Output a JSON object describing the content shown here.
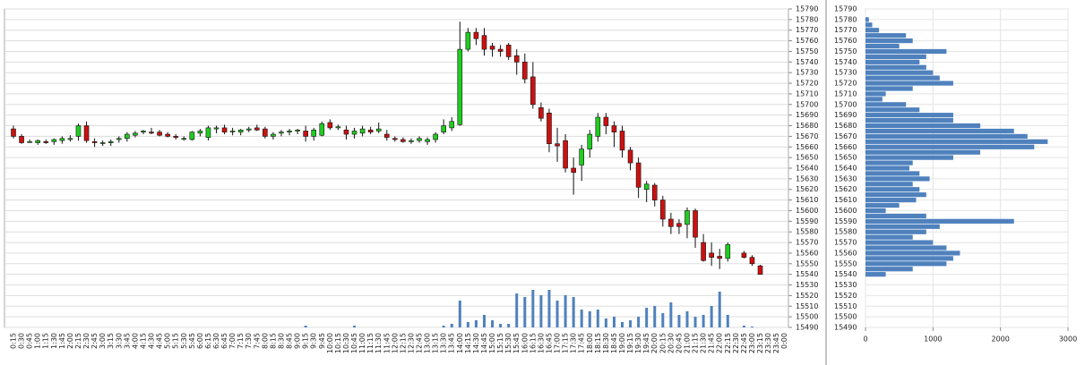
{
  "chart_data": [
    {
      "type": "candlestick",
      "categories": [
        "0:15",
        "0:30",
        "0:45",
        "1:00",
        "1:15",
        "1:30",
        "1:45",
        "2:00",
        "2:15",
        "2:30",
        "2:45",
        "3:00",
        "3:15",
        "3:30",
        "3:45",
        "4:00",
        "4:15",
        "4:30",
        "4:45",
        "5:00",
        "5:15",
        "5:30",
        "5:45",
        "6:00",
        "6:15",
        "6:30",
        "6:45",
        "7:00",
        "7:15",
        "7:30",
        "7:45",
        "8:00",
        "8:15",
        "8:30",
        "8:45",
        "9:00",
        "9:15",
        "9:30",
        "9:45",
        "10:00",
        "10:15",
        "10:30",
        "10:45",
        "11:00",
        "11:15",
        "11:30",
        "11:45",
        "12:00",
        "12:15",
        "12:30",
        "12:45",
        "13:00",
        "13:15",
        "13:30",
        "13:45",
        "14:00",
        "14:15",
        "14:30",
        "14:45",
        "15:00",
        "15:15",
        "15:30",
        "15:45",
        "16:00",
        "16:15",
        "16:30",
        "16:45",
        "17:00",
        "17:15",
        "17:30",
        "17:45",
        "18:00",
        "18:15",
        "18:30",
        "18:45",
        "19:00",
        "19:15",
        "19:30",
        "19:45",
        "20:00",
        "20:15",
        "20:30",
        "20:45",
        "21:00",
        "21:15",
        "21:30",
        "21:45",
        "22:00",
        "22:15",
        "22:30",
        "22:45",
        "23:00",
        "23:15",
        "23:30",
        "23:45",
        "0:00"
      ],
      "open": [
        15677,
        15670,
        15665,
        15664,
        15665,
        15665,
        15666,
        15667,
        15670,
        15680,
        15665,
        15664,
        15664,
        15667,
        15668,
        15671,
        15674,
        15674,
        15674,
        15672,
        15670,
        15668,
        15667,
        15673,
        15669,
        15677,
        15678,
        15675,
        15674,
        15676,
        15678,
        15677,
        15670,
        15673,
        15674,
        15675,
        15675,
        15670,
        15671,
        15683,
        15678,
        15676,
        15672,
        15673,
        15676,
        15675,
        15672,
        15668,
        15667,
        15665,
        15666,
        15665,
        15667,
        15674,
        15678,
        15681,
        15752,
        15768,
        15765,
        15755,
        15752,
        15756,
        15746,
        15740,
        15726,
        15697,
        15692,
        15663,
        15666,
        15640,
        15643,
        15658,
        15670,
        15688,
        15680,
        15675,
        15657,
        15645,
        15620,
        15624,
        15610,
        15592,
        15588,
        15587,
        15600,
        15570,
        15560,
        15557,
        15555,
        null,
        15560,
        15556,
        15548,
        null,
        null,
        null
      ],
      "high": [
        15680,
        15672,
        15667,
        15667,
        15667,
        15668,
        15670,
        15671,
        15682,
        15684,
        15668,
        15666,
        15667,
        15670,
        15674,
        15675,
        15676,
        15678,
        15676,
        15674,
        15672,
        15670,
        15675,
        15677,
        15680,
        15680,
        15681,
        15678,
        15677,
        15679,
        15681,
        15679,
        15674,
        15676,
        15677,
        15677,
        15680,
        15678,
        15684,
        15686,
        15681,
        15680,
        15678,
        15680,
        15679,
        15683,
        15676,
        15670,
        15669,
        15668,
        15670,
        15669,
        15674,
        15686,
        15688,
        15778,
        15772,
        15772,
        15772,
        15758,
        15756,
        15758,
        15752,
        15748,
        15740,
        15702,
        15696,
        15678,
        15672,
        15650,
        15662,
        15676,
        15692,
        15692,
        15684,
        15680,
        15660,
        15650,
        15628,
        15626,
        15614,
        15598,
        15592,
        15603,
        15602,
        15578,
        15570,
        15564,
        15570,
        null,
        15562,
        15558,
        15549,
        null,
        null,
        null
      ],
      "low": [
        15668,
        15663,
        15664,
        15662,
        15663,
        15662,
        15663,
        15665,
        15666,
        15664,
        15660,
        15661,
        15661,
        15664,
        15665,
        15669,
        15672,
        15672,
        15670,
        15669,
        15667,
        15666,
        15666,
        15670,
        15666,
        15673,
        15672,
        15671,
        15671,
        15674,
        15675,
        15668,
        15667,
        15670,
        15671,
        15672,
        15665,
        15666,
        15670,
        15676,
        15676,
        15667,
        15668,
        15670,
        15672,
        15673,
        15666,
        15665,
        15664,
        15663,
        15664,
        15662,
        15664,
        15672,
        15675,
        15680,
        15750,
        15756,
        15746,
        15745,
        15745,
        15742,
        15728,
        15720,
        15696,
        15684,
        15655,
        15646,
        15636,
        15615,
        15628,
        15650,
        15665,
        15672,
        15660,
        15650,
        15638,
        15612,
        15608,
        15604,
        15585,
        15578,
        15578,
        15574,
        15565,
        15552,
        15548,
        15545,
        15552,
        null,
        15555,
        15548,
        15540,
        null,
        null,
        null
      ],
      "close": [
        15670,
        15664,
        15665,
        15666,
        15664,
        15667,
        15668,
        15668,
        15680,
        15666,
        15664,
        15664,
        15665,
        15668,
        15672,
        15673,
        15675,
        15673,
        15671,
        15670,
        15669,
        15668,
        15674,
        15675,
        15678,
        15678,
        15674,
        15675,
        15676,
        15677,
        15676,
        15670,
        15672,
        15674,
        15675,
        15676,
        15670,
        15676,
        15682,
        15678,
        15679,
        15672,
        15675,
        15677,
        15674,
        15677,
        15669,
        15667,
        15665,
        15666,
        15668,
        15667,
        15672,
        15680,
        15684,
        15752,
        15768,
        15762,
        15752,
        15752,
        15750,
        15745,
        15740,
        15724,
        15700,
        15687,
        15663,
        15661,
        15640,
        15636,
        15658,
        15672,
        15688,
        15680,
        15674,
        15657,
        15645,
        15622,
        15625,
        15610,
        15592,
        15585,
        15585,
        15600,
        15575,
        15553,
        15556,
        15555,
        15568,
        null,
        15556,
        15550,
        15540,
        null,
        null,
        null
      ],
      "volume": [
        0,
        0,
        0,
        0,
        0,
        0,
        0,
        0,
        0,
        0,
        0,
        0,
        0,
        0,
        0,
        0,
        0,
        0,
        0,
        0,
        0,
        0,
        0,
        0,
        0,
        0,
        0,
        0,
        0,
        0,
        0,
        0,
        0,
        0,
        0,
        0,
        2,
        0,
        0,
        0,
        0,
        0,
        2,
        0,
        0,
        0,
        0,
        0,
        0,
        0,
        0,
        0,
        0,
        2,
        4,
        30,
        6,
        8,
        14,
        8,
        4,
        4,
        38,
        34,
        42,
        36,
        42,
        30,
        36,
        34,
        20,
        18,
        20,
        10,
        12,
        6,
        8,
        12,
        22,
        24,
        16,
        28,
        14,
        18,
        12,
        14,
        24,
        40,
        14,
        0,
        2,
        1,
        0,
        0,
        0,
        0
      ],
      "up_color": "#22cc22",
      "down_color": "#cc1111",
      "volume_color": "#4f81bd",
      "ylim": [
        15490,
        15790
      ],
      "yticks": [
        15490,
        15500,
        15510,
        15520,
        15530,
        15540,
        15550,
        15560,
        15570,
        15580,
        15590,
        15600,
        15610,
        15620,
        15630,
        15640,
        15650,
        15660,
        15670,
        15680,
        15690,
        15700,
        15710,
        15720,
        15730,
        15740,
        15750,
        15760,
        15770,
        15780,
        15790
      ],
      "grid": true
    },
    {
      "type": "bar",
      "orientation": "horizontal",
      "color": "#4f81bd",
      "y": [
        15780,
        15775,
        15770,
        15765,
        15760,
        15755,
        15750,
        15745,
        15740,
        15735,
        15730,
        15725,
        15720,
        15715,
        15710,
        15705,
        15700,
        15695,
        15690,
        15685,
        15680,
        15675,
        15670,
        15665,
        15660,
        15655,
        15650,
        15645,
        15640,
        15635,
        15630,
        15625,
        15620,
        15615,
        15610,
        15605,
        15600,
        15595,
        15590,
        15585,
        15580,
        15575,
        15570,
        15565,
        15560,
        15555,
        15550,
        15545,
        15540
      ],
      "values": [
        50,
        100,
        200,
        600,
        700,
        500,
        1200,
        900,
        800,
        900,
        1000,
        1100,
        1300,
        700,
        300,
        250,
        600,
        800,
        1300,
        1300,
        1700,
        2200,
        2400,
        2700,
        2500,
        1700,
        1300,
        700,
        650,
        800,
        950,
        700,
        800,
        900,
        750,
        500,
        300,
        900,
        2200,
        1100,
        900,
        700,
        1000,
        1200,
        1400,
        1300,
        1200,
        700,
        300
      ],
      "xlim": [
        0,
        3000
      ],
      "xticks": [
        0,
        1000,
        2000,
        3000
      ],
      "ylim": [
        15490,
        15790
      ],
      "yticks": [
        15490,
        15500,
        15510,
        15520,
        15530,
        15540,
        15550,
        15560,
        15570,
        15580,
        15590,
        15600,
        15610,
        15620,
        15630,
        15640,
        15650,
        15660,
        15670,
        15680,
        15690,
        15700,
        15710,
        15720,
        15730,
        15740,
        15750,
        15760,
        15770,
        15780,
        15790
      ],
      "grid": true
    }
  ]
}
